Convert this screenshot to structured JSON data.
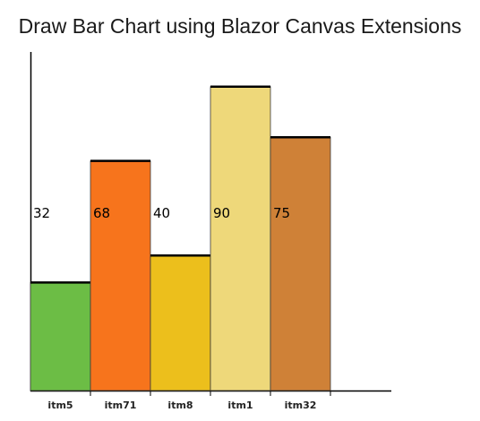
{
  "page": {
    "title": "Draw Bar Chart using Blazor Canvas Extensions"
  },
  "chart_data": {
    "type": "bar",
    "title": "Draw Bar Chart using Blazor Canvas Extensions",
    "xlabel": "",
    "ylabel": "",
    "categories": [
      "itm5",
      "itm71",
      "itm8",
      "itm1",
      "itm32"
    ],
    "values": [
      32,
      68,
      40,
      90,
      75
    ],
    "data_labels": [
      "32",
      "68",
      "40",
      "90",
      "75"
    ],
    "colors": [
      "#6cbd45",
      "#f7741c",
      "#ecbf1c",
      "#eed87a",
      "#cf8137"
    ],
    "grid": false,
    "legend": "none"
  }
}
